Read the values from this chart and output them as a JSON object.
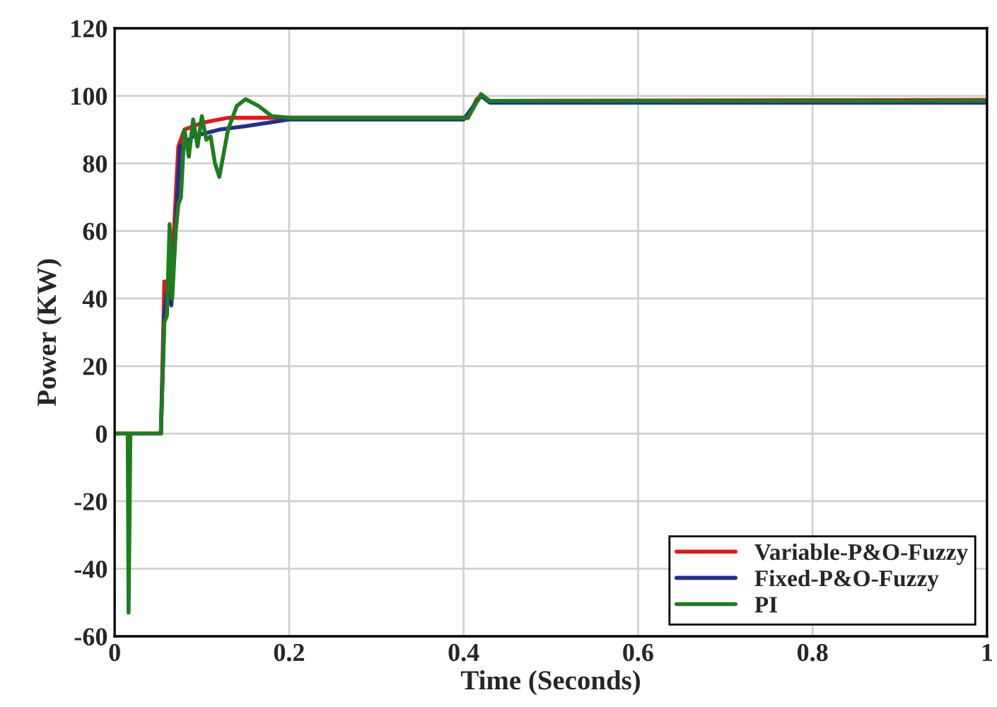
{
  "chart_data": {
    "type": "line",
    "xlabel": "Time (Seconds)",
    "ylabel": "Power (KW)",
    "xlim": [
      0,
      1
    ],
    "ylim": [
      -60,
      120
    ],
    "xticks": [
      0,
      0.2,
      0.4,
      0.6,
      0.8,
      1
    ],
    "yticks": [
      -60,
      -40,
      -20,
      0,
      20,
      40,
      60,
      80,
      100,
      120
    ],
    "grid": true,
    "legend": "bottom right",
    "series": [
      {
        "name": "Variable-P&O-Fuzzy",
        "color": "#e8141a",
        "x": [
          0,
          0.018,
          0.053,
          0.057,
          0.06,
          0.063,
          0.068,
          0.073,
          0.08,
          0.1,
          0.13,
          0.2,
          0.405,
          0.415,
          0.42,
          0.43,
          1.0
        ],
        "values": [
          0,
          0,
          0,
          45,
          45,
          42,
          60,
          85,
          90,
          92,
          93.5,
          93.5,
          93.5,
          99,
          100,
          98.5,
          98.8
        ]
      },
      {
        "name": "Fixed-P&O-Fuzzy",
        "color": "#1f2f8f",
        "x": [
          0.053,
          0.057,
          0.06,
          0.065,
          0.075,
          0.09,
          0.12,
          0.15,
          0.2,
          0.4,
          0.42,
          0.43,
          1.0
        ],
        "values": [
          0,
          35,
          42,
          38,
          85,
          88,
          90,
          91,
          93,
          93,
          100,
          98,
          98
        ]
      },
      {
        "name": "PI",
        "color": "#1e7d1e",
        "x": [
          0,
          0.015,
          0.016,
          0.018,
          0.053,
          0.057,
          0.06,
          0.063,
          0.066,
          0.07,
          0.073,
          0.076,
          0.08,
          0.085,
          0.09,
          0.095,
          0.1,
          0.105,
          0.11,
          0.115,
          0.12,
          0.13,
          0.14,
          0.15,
          0.165,
          0.18,
          0.2,
          0.405,
          0.42,
          0.43,
          1.0
        ],
        "values": [
          0,
          0,
          -53,
          0,
          0,
          33,
          35,
          62,
          40,
          60,
          68,
          70,
          90,
          82,
          93,
          85,
          94,
          87,
          88,
          80,
          76,
          90,
          97,
          99,
          97,
          94,
          93.5,
          93.5,
          100.5,
          98.5,
          98.5
        ]
      }
    ]
  }
}
